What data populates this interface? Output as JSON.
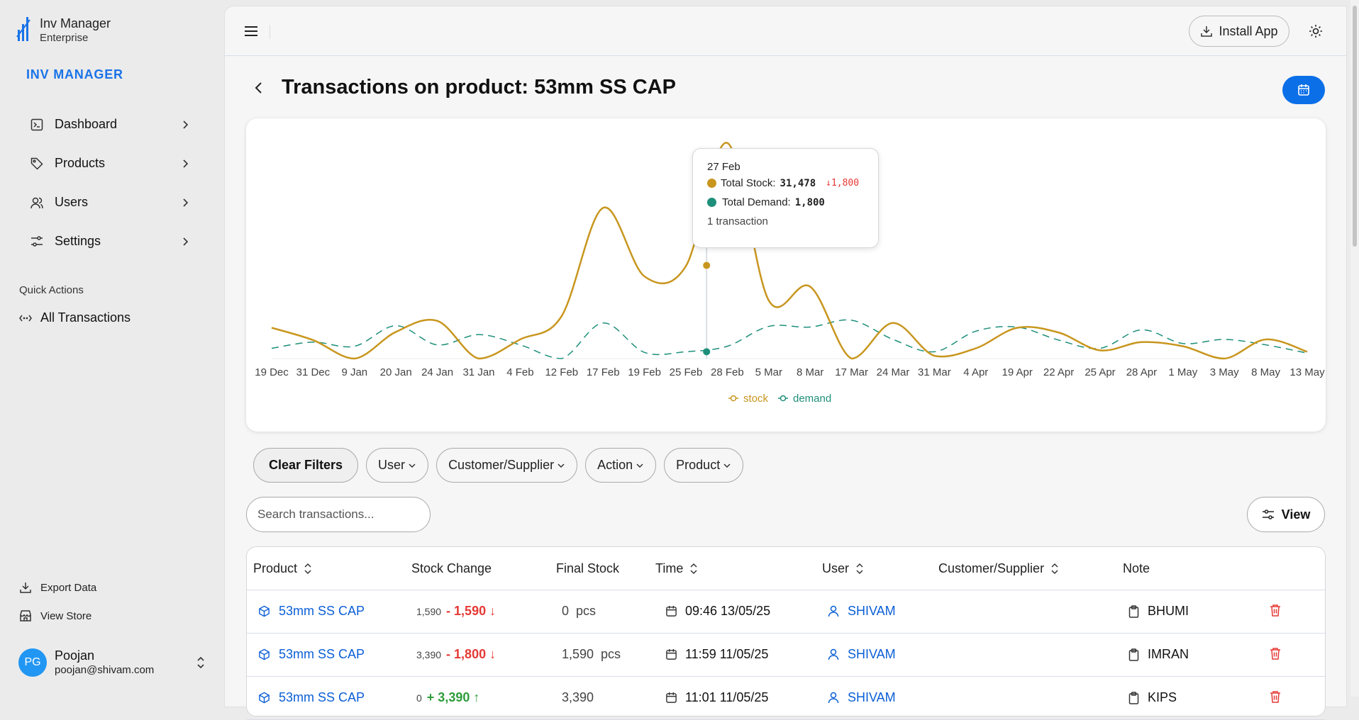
{
  "sidebar": {
    "brand_name": "Inv Manager",
    "brand_sub": "Enterprise",
    "section_label": "INV MANAGER",
    "nav": [
      {
        "label": "Dashboard",
        "icon": "terminal-icon"
      },
      {
        "label": "Products",
        "icon": "tag-icon"
      },
      {
        "label": "Users",
        "icon": "users-icon"
      },
      {
        "label": "Settings",
        "icon": "settings-sliders-icon"
      }
    ],
    "quick_actions_label": "Quick Actions",
    "quick_action": "All Transactions",
    "export_label": "Export Data",
    "store_label": "View Store",
    "user": {
      "initials": "PG",
      "name": "Poojan",
      "email": "poojan@shivam.com"
    }
  },
  "topbar": {
    "install_label": "Install App"
  },
  "page": {
    "title": "Transactions on product: 53mm SS CAP"
  },
  "chart_data": {
    "type": "line",
    "x": [
      "19 Dec",
      "31 Dec",
      "9 Jan",
      "20 Jan",
      "24 Jan",
      "31 Jan",
      "4 Feb",
      "12 Feb",
      "17 Feb",
      "19 Feb",
      "25 Feb",
      "28 Feb",
      "5 Mar",
      "8 Mar",
      "17 Mar",
      "24 Mar",
      "31 Mar",
      "4 Apr",
      "19 Apr",
      "22 Apr",
      "25 Apr",
      "28 Apr",
      "1 May",
      "3 May",
      "8 May",
      "13 May"
    ],
    "series": [
      {
        "name": "stock",
        "color": "#c8961e",
        "values": [
          4500,
          2700,
          0,
          3900,
          5500,
          0,
          2800,
          6200,
          22000,
          12000,
          13500,
          31478,
          8500,
          10500,
          0,
          5200,
          400,
          1500,
          4500,
          3800,
          1200,
          2400,
          1800,
          0,
          2800,
          1000
        ]
      },
      {
        "name": "demand",
        "color": "#1e8f7a",
        "values": [
          1500,
          2400,
          1800,
          4800,
          2000,
          3500,
          2000,
          0,
          5200,
          900,
          1000,
          1800,
          4700,
          4600,
          5600,
          2800,
          1000,
          4000,
          4600,
          2700,
          1500,
          4200,
          2200,
          2800,
          2000,
          800
        ]
      }
    ],
    "ylim": [
      0,
      33000
    ],
    "legend_placement": "bottom-center",
    "grid": false
  },
  "tooltip": {
    "date": "27 Feb",
    "stock_label": "Total Stock:",
    "stock_value": "31,478",
    "stock_delta": "1,800",
    "demand_label": "Total Demand:",
    "demand_value": "1,800",
    "count": "1 transaction"
  },
  "filters": {
    "clear": "Clear Filters",
    "chips": [
      "User",
      "Customer/Supplier",
      "Action",
      "Product"
    ]
  },
  "search": {
    "placeholder": "Search transactions..."
  },
  "view_label": "View",
  "table": {
    "headers": [
      "Product",
      "Stock Change",
      "Final Stock",
      "Time",
      "User",
      "Customer/Supplier",
      "Note"
    ],
    "rows": [
      {
        "product": "53mm SS CAP",
        "prev": "1,590",
        "change": "- 1,590",
        "dir": "down",
        "final": "0",
        "unit": "pcs",
        "time": "09:46 13/05/25",
        "user": "SHIVAM",
        "customer": "",
        "note": "BHUMI"
      },
      {
        "product": "53mm SS CAP",
        "prev": "3,390",
        "change": "- 1,800",
        "dir": "down",
        "final": "1,590",
        "unit": "pcs",
        "time": "11:59 11/05/25",
        "user": "SHIVAM",
        "customer": "",
        "note": "IMRAN"
      },
      {
        "product": "53mm SS CAP",
        "prev": "0",
        "change": "+ 3,390",
        "dir": "up",
        "final": "3,390",
        "unit": "",
        "time": "11:01 11/05/25",
        "user": "SHIVAM",
        "customer": "",
        "note": "KIPS"
      }
    ]
  }
}
